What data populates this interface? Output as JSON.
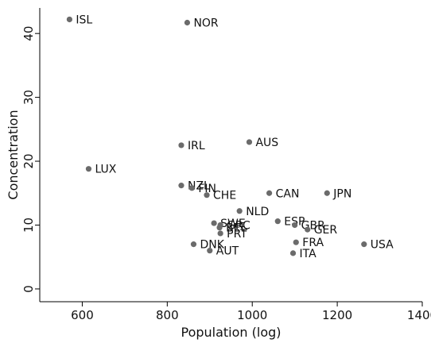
{
  "chart_data": {
    "type": "scatter",
    "title": "",
    "xlabel": "Population (log)",
    "ylabel": "Concentration",
    "xlim": [
      500,
      1400
    ],
    "ylim": [
      -2,
      44
    ],
    "xticks": [
      600,
      800,
      1000,
      1200,
      1400
    ],
    "yticks": [
      0,
      10,
      20,
      30,
      40
    ],
    "grid": false,
    "marker_color": "#6b6b6b",
    "points": [
      {
        "label": "ISL",
        "x": 570,
        "y": 42.2
      },
      {
        "label": "NOR",
        "x": 847,
        "y": 41.7
      },
      {
        "label": "LUX",
        "x": 615,
        "y": 18.8
      },
      {
        "label": "IRL",
        "x": 833,
        "y": 22.5
      },
      {
        "label": "AUS",
        "x": 993,
        "y": 23.0
      },
      {
        "label": "NZL",
        "x": 833,
        "y": 16.2
      },
      {
        "label": "FIN",
        "x": 858,
        "y": 15.8
      },
      {
        "label": "CHE",
        "x": 893,
        "y": 14.7
      },
      {
        "label": "CAN",
        "x": 1040,
        "y": 15.0
      },
      {
        "label": "JPN",
        "x": 1176,
        "y": 15.0
      },
      {
        "label": "NLD",
        "x": 970,
        "y": 12.2
      },
      {
        "label": "SWE",
        "x": 910,
        "y": 10.3
      },
      {
        "label": "BEL",
        "x": 923,
        "y": 9.6
      },
      {
        "label": "GRC",
        "x": 925,
        "y": 10.0
      },
      {
        "label": "PRT",
        "x": 925,
        "y": 8.7
      },
      {
        "label": "ESP",
        "x": 1060,
        "y": 10.6
      },
      {
        "label": "GBR",
        "x": 1100,
        "y": 10.0
      },
      {
        "label": "GER",
        "x": 1130,
        "y": 9.3
      },
      {
        "label": "DNK",
        "x": 862,
        "y": 7.0
      },
      {
        "label": "AUT",
        "x": 900,
        "y": 6.0
      },
      {
        "label": "FRA",
        "x": 1103,
        "y": 7.3
      },
      {
        "label": "ITA",
        "x": 1096,
        "y": 5.6
      },
      {
        "label": "USA",
        "x": 1263,
        "y": 7.0
      }
    ]
  }
}
